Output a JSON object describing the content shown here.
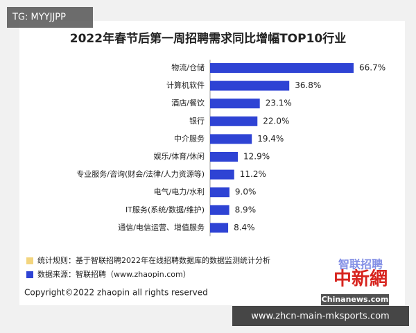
{
  "overlay_top": "TG: MYYJJPP",
  "chart_data": {
    "type": "bar",
    "orientation": "horizontal",
    "title": "2022年春节后第一周招聘需求同比增幅TOP10行业",
    "categories": [
      "物流/仓储",
      "计算机软件",
      "酒店/餐饮",
      "银行",
      "中介服务",
      "娱乐/体育/休闲",
      "专业服务/咨询(财会/法律/人力资源等)",
      "电气/电力/水利",
      "IT服务(系统/数据/维护)",
      "通信/电信运营、增值服务"
    ],
    "values": [
      66.7,
      36.8,
      23.1,
      22.0,
      19.4,
      12.9,
      11.2,
      9.0,
      8.9,
      8.4
    ],
    "value_labels": [
      "66.7%",
      "36.8%",
      "23.1%",
      "22.0%",
      "19.4%",
      "12.9%",
      "11.2%",
      "9.0%",
      "8.9%",
      "8.4%"
    ],
    "color": "#2e43d4"
  },
  "notes": [
    {
      "text": "统计规则：基于智联招聘2022年在线招聘数据库的数据监测统计分析",
      "color": "#f3d57e"
    },
    {
      "text": "数据来源：智联招聘（www.zhaopin.com）",
      "color": "#2e43d4"
    }
  ],
  "copyright": "Copyright©2022 zhaopin all rights reserved",
  "watermarks": {
    "brand": "智联招聘",
    "logo": "中新網",
    "site": "Chinanews.com",
    "url": "www.zhcn-main-mksports.com"
  }
}
